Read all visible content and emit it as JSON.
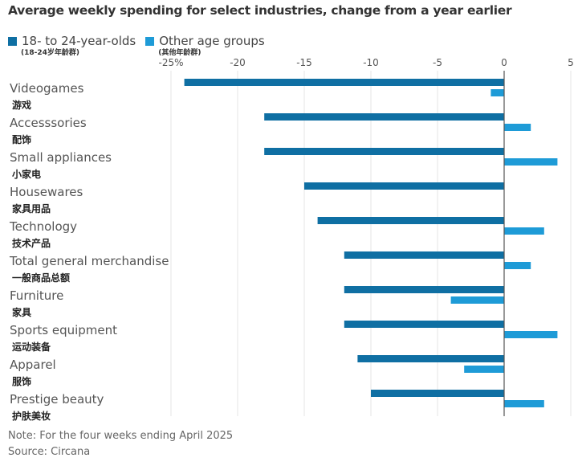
{
  "title": "Average weekly spending for select industries, change from a year earlier",
  "legend": [
    {
      "label": "18- to 24-year-olds",
      "sub": "(18-24岁年龄群)",
      "color": "#0f6fa3"
    },
    {
      "label": "Other age groups",
      "sub": "(其他年龄群)",
      "color": "#1e9bd7"
    }
  ],
  "note": "Note: For the four weeks ending April 2025",
  "source": "Source: Circana",
  "chart_data": {
    "type": "bar",
    "orientation": "horizontal",
    "title": "Average weekly spending for select industries, change from a year earlier",
    "xlabel": "",
    "ylabel": "",
    "xlim": [
      -25,
      5
    ],
    "xticks": [
      -25,
      -20,
      -15,
      -10,
      -5,
      0,
      5
    ],
    "xtick_labels": [
      "-25%",
      "-20",
      "-15",
      "-10",
      "-5",
      "0",
      "5"
    ],
    "grid": true,
    "legend_position": "top-left",
    "categories": [
      "Videogames",
      "Accesssories",
      "Small appliances",
      "Housewares",
      "Technology",
      "Total general merchandise",
      "Furniture",
      "Sports equipment",
      "Apparel",
      "Prestige beauty"
    ],
    "categories_zh": [
      "游戏",
      "配饰",
      "小家电",
      "家具用品",
      "技术产品",
      "一般商品总额",
      "家具",
      "运动装备",
      "服饰",
      "护肤美妆"
    ],
    "series": [
      {
        "name": "18- to 24-year-olds",
        "color": "#0f6fa3",
        "values": [
          -24,
          -18,
          -18,
          -15,
          -14,
          -12,
          -12,
          -12,
          -11,
          -10
        ]
      },
      {
        "name": "Other age groups",
        "color": "#1e9bd7",
        "values": [
          -1,
          2,
          4,
          0,
          3,
          2,
          -4,
          4,
          -3,
          3
        ]
      }
    ]
  }
}
